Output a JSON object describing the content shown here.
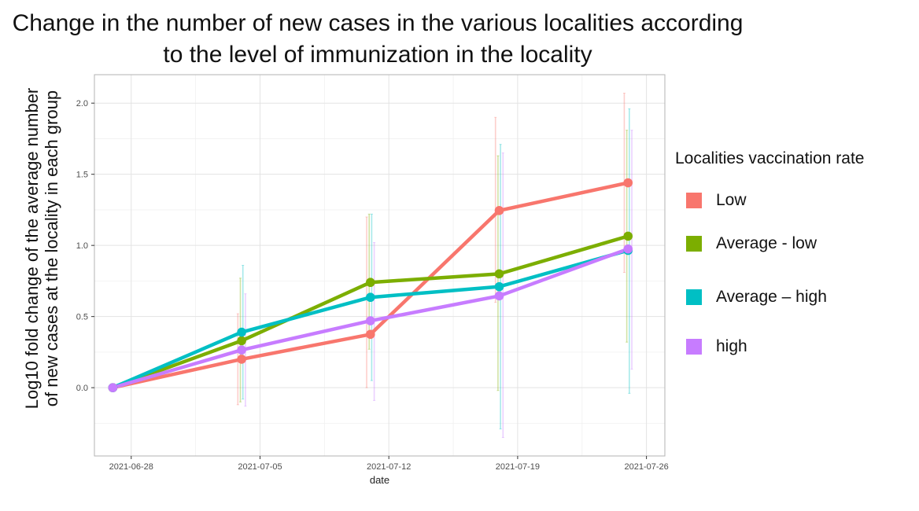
{
  "chart_data": {
    "type": "line",
    "title_lines": [
      "Change in the number of new cases in the various localities according",
      "to the level of immunization in the locality"
    ],
    "ylabel_lines": [
      "Log10 fold change of the average number",
      "of new cases at the locality in each group"
    ],
    "xlabel": "date",
    "x_dates": [
      "2021-06-28",
      "2021-07-05",
      "2021-07-12",
      "2021-07-19",
      "2021-07-26"
    ],
    "xlim": [
      "2021-06-26",
      "2021-07-27"
    ],
    "ylim": [
      -0.48,
      2.2
    ],
    "y_ticks": [
      0.0,
      0.5,
      1.0,
      1.5,
      2.0
    ],
    "y_tick_labels": [
      "0.0",
      "0.5",
      "1.0",
      "1.5",
      "2.0"
    ],
    "x_ticks": [
      "2021-06-28",
      "2021-07-05",
      "2021-07-12",
      "2021-07-19",
      "2021-07-26"
    ],
    "x_tick_labels": [
      "2021-06-28",
      "2021-07-05",
      "2021-07-12",
      "2021-07-19",
      "2021-07-26"
    ],
    "grid": true,
    "legend": {
      "title": "Localities vaccination rate",
      "position": "right"
    },
    "series": [
      {
        "name": "Low",
        "color": "#F8766D",
        "points": [
          {
            "x": "2021-06-27",
            "y": 0.0
          },
          {
            "x": "2021-07-04",
            "y": 0.2,
            "lo": -0.12,
            "hi": 0.52
          },
          {
            "x": "2021-07-11",
            "y": 0.375,
            "lo": 0.0,
            "hi": 1.2
          },
          {
            "x": "2021-07-18",
            "y": 1.245,
            "lo": 0.6,
            "hi": 1.9
          },
          {
            "x": "2021-07-25",
            "y": 1.44,
            "lo": 0.81,
            "hi": 2.07
          }
        ]
      },
      {
        "name": "Average - low",
        "color": "#7CAE00",
        "points": [
          {
            "x": "2021-06-27",
            "y": 0.0
          },
          {
            "x": "2021-07-04",
            "y": 0.33,
            "lo": -0.1,
            "hi": 0.77
          },
          {
            "x": "2021-07-11",
            "y": 0.74,
            "lo": 0.27,
            "hi": 1.22
          },
          {
            "x": "2021-07-18",
            "y": 0.8,
            "lo": -0.02,
            "hi": 1.63
          },
          {
            "x": "2021-07-25",
            "y": 1.065,
            "lo": 0.32,
            "hi": 1.81
          }
        ]
      },
      {
        "name": "Average – high",
        "color": "#00BFC4",
        "points": [
          {
            "x": "2021-06-27",
            "y": 0.0
          },
          {
            "x": "2021-07-04",
            "y": 0.39,
            "lo": -0.08,
            "hi": 0.86
          },
          {
            "x": "2021-07-11",
            "y": 0.635,
            "lo": 0.05,
            "hi": 1.22
          },
          {
            "x": "2021-07-18",
            "y": 0.71,
            "lo": -0.29,
            "hi": 1.71
          },
          {
            "x": "2021-07-25",
            "y": 0.965,
            "lo": -0.04,
            "hi": 1.96
          }
        ]
      },
      {
        "name": "high",
        "color": "#C77CFF",
        "points": [
          {
            "x": "2021-06-27",
            "y": 0.0
          },
          {
            "x": "2021-07-04",
            "y": 0.265,
            "lo": -0.13,
            "hi": 0.66
          },
          {
            "x": "2021-07-11",
            "y": 0.47,
            "lo": -0.09,
            "hi": 1.02
          },
          {
            "x": "2021-07-18",
            "y": 0.645,
            "lo": -0.35,
            "hi": 1.65
          },
          {
            "x": "2021-07-25",
            "y": 0.975,
            "lo": 0.13,
            "hi": 1.81
          }
        ]
      }
    ]
  }
}
